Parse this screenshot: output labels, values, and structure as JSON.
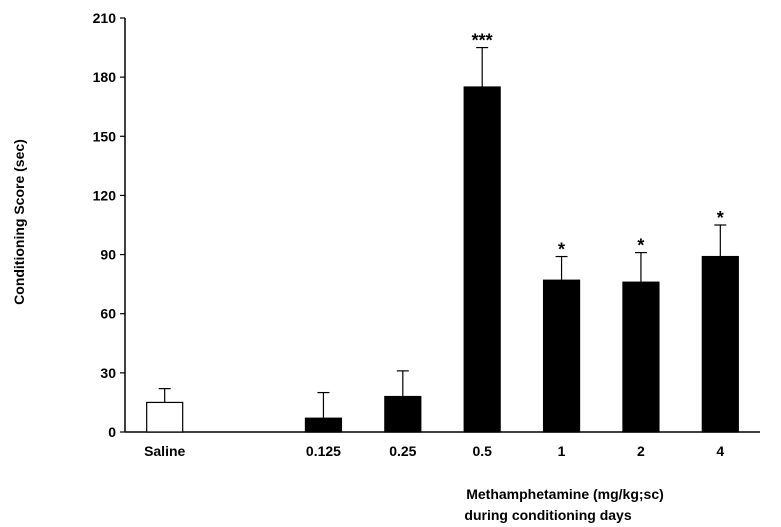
{
  "chart_data": {
    "type": "bar",
    "title": "",
    "ylabel": "Conditioning Score (sec)",
    "xlabel_lines": [
      "Methamphetamine (mg/kg;sc)",
      "during conditioning days"
    ],
    "ylim": [
      0,
      210
    ],
    "yticks": [
      0,
      30,
      60,
      90,
      120,
      150,
      180,
      210
    ],
    "grid": false,
    "legend": "none",
    "categories": [
      "Saline",
      "",
      "0.125",
      "0.25",
      "0.5",
      "1",
      "2",
      "4"
    ],
    "values": [
      15,
      null,
      7,
      18,
      175,
      77,
      76,
      89
    ],
    "errors": [
      7,
      null,
      13,
      13,
      20,
      12,
      15,
      16
    ],
    "significance": [
      "",
      "",
      "",
      "",
      "***",
      "*",
      "*",
      "*"
    ],
    "fill_colors": [
      "#ffffff",
      null,
      "#000000",
      "#000000",
      "#000000",
      "#000000",
      "#000000",
      "#000000"
    ]
  }
}
